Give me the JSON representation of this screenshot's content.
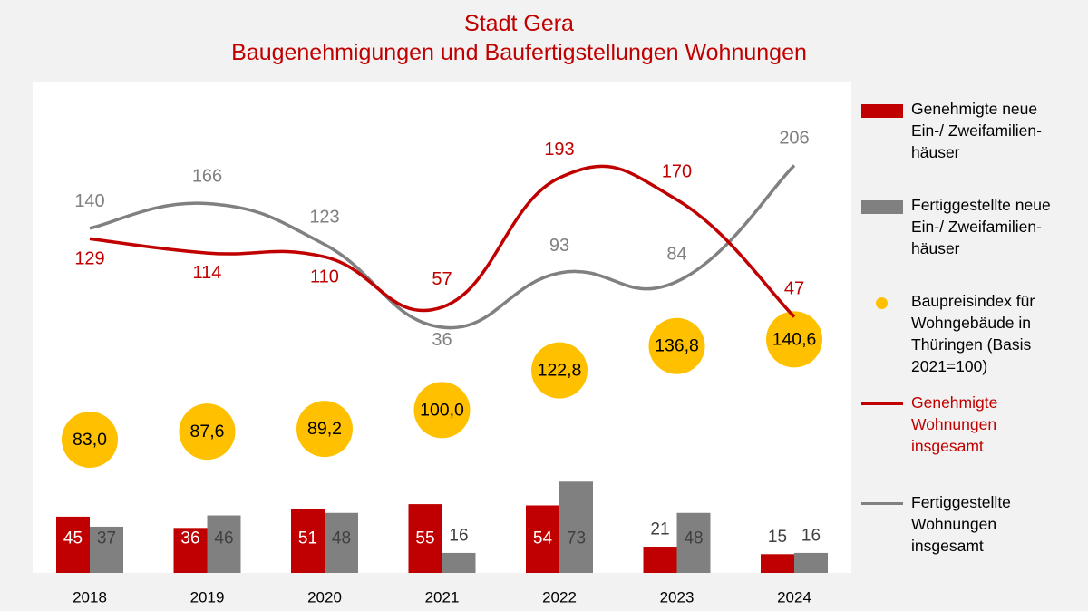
{
  "title_line1": "Stadt Gera",
  "title_line2": "Baugenehmigungen und Baufertigstellungen Wohnungen",
  "colors": {
    "red": "#c00000",
    "gray": "#808080",
    "gold": "#ffc000",
    "title": "#c00000"
  },
  "chart_data": {
    "type": "bar",
    "categories": [
      "2018",
      "2019",
      "2020",
      "2021",
      "2022",
      "2023",
      "2024"
    ],
    "series": [
      {
        "name": "Genehmigte neue Ein-/ Zweifamilien-häuser",
        "kind": "bar",
        "color": "#c00000",
        "values": [
          45,
          36,
          51,
          55,
          54,
          21,
          15
        ]
      },
      {
        "name": "Fertiggestellte neue Ein-/ Zweifamilien-häuser",
        "kind": "bar",
        "color": "#808080",
        "values": [
          37,
          46,
          48,
          16,
          73,
          48,
          16
        ]
      },
      {
        "name": "Baupreisindex für Wohngebäude in Thüringen (Basis 2021=100)",
        "kind": "dot",
        "color": "#ffc000",
        "values": [
          83.0,
          87.6,
          89.2,
          100.0,
          122.8,
          136.8,
          140.6
        ],
        "labels": [
          "83,0",
          "87,6",
          "89,2",
          "100,0",
          "122,8",
          "136,8",
          "140,6"
        ]
      },
      {
        "name": "Genehmigte Wohnungen insgesamt",
        "kind": "line",
        "color": "#c00000",
        "values": [
          129,
          114,
          110,
          57,
          193,
          170,
          47
        ]
      },
      {
        "name": "Fertiggestellte Wohnungen insgesamt",
        "kind": "line",
        "color": "#808080",
        "values": [
          140,
          166,
          123,
          36,
          93,
          84,
          206
        ]
      }
    ],
    "legend": {
      "position": "right",
      "items": [
        {
          "lines": [
            "Genehmigte neue",
            "Ein-/ Zweifamilien-",
            "häuser"
          ],
          "symbol": "bar",
          "color": "#c00000"
        },
        {
          "lines": [
            "Fertiggestellte neue",
            "Ein-/ Zweifamilien-",
            "häuser"
          ],
          "symbol": "bar",
          "color": "#808080"
        },
        {
          "lines": [
            "Baupreisindex für",
            "Wohngebäude in",
            "Thüringen (Basis",
            "2021=100)"
          ],
          "symbol": "dot",
          "color": "#ffc000"
        },
        {
          "lines": [
            "Genehmigte",
            "Wohnungen",
            "insgesamt"
          ],
          "symbol": "line",
          "color": "#c00000"
        },
        {
          "lines": [
            "Fertiggestellte",
            "Wohnungen",
            "insgesamt"
          ],
          "symbol": "line",
          "color": "#808080"
        }
      ]
    },
    "grid": false
  }
}
